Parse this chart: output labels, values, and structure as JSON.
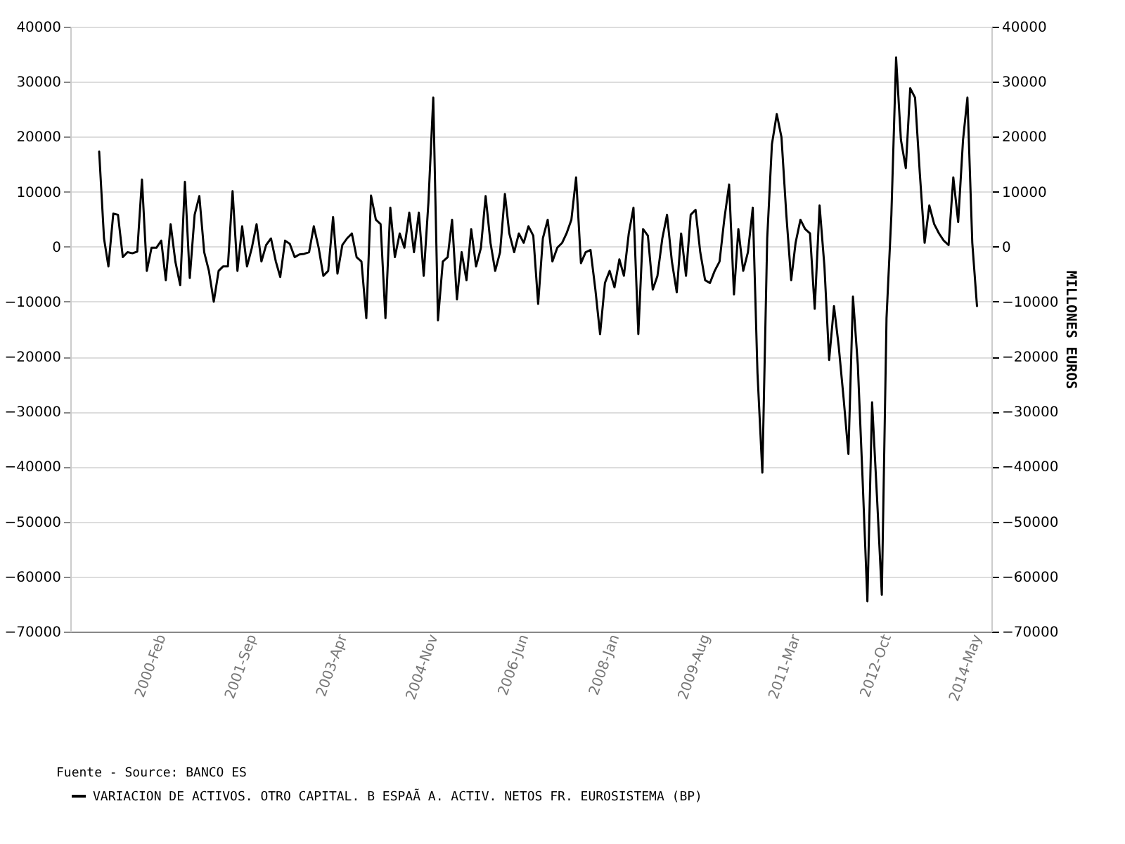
{
  "chart_data": {
    "type": "line",
    "y2label": "MILLONES EUROS",
    "annotations": [
      "Fuente - Source: BANCO ES"
    ],
    "x": [
      "1999-01",
      "1999-02",
      "1999-03",
      "1999-04",
      "1999-05",
      "1999-06",
      "1999-07",
      "1999-08",
      "1999-09",
      "1999-10",
      "1999-11",
      "1999-12",
      "2000-01",
      "2000-02",
      "2000-03",
      "2000-04",
      "2000-05",
      "2000-06",
      "2000-07",
      "2000-08",
      "2000-09",
      "2000-10",
      "2000-11",
      "2000-12",
      "2001-01",
      "2001-02",
      "2001-03",
      "2001-04",
      "2001-05",
      "2001-06",
      "2001-07",
      "2001-08",
      "2001-09",
      "2001-10",
      "2001-11",
      "2001-12",
      "2002-01",
      "2002-02",
      "2002-03",
      "2002-04",
      "2002-05",
      "2002-06",
      "2002-07",
      "2002-08",
      "2002-09",
      "2002-10",
      "2002-11",
      "2002-12",
      "2003-01",
      "2003-02",
      "2003-03",
      "2003-04",
      "2003-05",
      "2003-06",
      "2003-07",
      "2003-08",
      "2003-09",
      "2003-10",
      "2003-11",
      "2003-12",
      "2004-01",
      "2004-02",
      "2004-03",
      "2004-04",
      "2004-05",
      "2004-06",
      "2004-07",
      "2004-08",
      "2004-09",
      "2004-10",
      "2004-11",
      "2004-12",
      "2005-01",
      "2005-02",
      "2005-03",
      "2005-04",
      "2005-05",
      "2005-06",
      "2005-07",
      "2005-08",
      "2005-09",
      "2005-10",
      "2005-11",
      "2005-12",
      "2006-01",
      "2006-02",
      "2006-03",
      "2006-04",
      "2006-05",
      "2006-06",
      "2006-07",
      "2006-08",
      "2006-09",
      "2006-10",
      "2006-11",
      "2006-12",
      "2007-01",
      "2007-02",
      "2007-03",
      "2007-04",
      "2007-05",
      "2007-06",
      "2007-07",
      "2007-08",
      "2007-09",
      "2007-10",
      "2007-11",
      "2007-12",
      "2008-01",
      "2008-02",
      "2008-03",
      "2008-04",
      "2008-05",
      "2008-06",
      "2008-07",
      "2008-08",
      "2008-09",
      "2008-10",
      "2008-11",
      "2008-12",
      "2009-01",
      "2009-02",
      "2009-03",
      "2009-04",
      "2009-05",
      "2009-06",
      "2009-07",
      "2009-08",
      "2009-09",
      "2009-10",
      "2009-11",
      "2009-12",
      "2010-01",
      "2010-02",
      "2010-03",
      "2010-04",
      "2010-05",
      "2010-06",
      "2010-07",
      "2010-08",
      "2010-09",
      "2010-10",
      "2010-11",
      "2010-12",
      "2011-01",
      "2011-02",
      "2011-03",
      "2011-04",
      "2011-05",
      "2011-06",
      "2011-07",
      "2011-08",
      "2011-09",
      "2011-10",
      "2011-11",
      "2011-12",
      "2012-01",
      "2012-02",
      "2012-03",
      "2012-04",
      "2012-05",
      "2012-06",
      "2012-07",
      "2012-08",
      "2012-09",
      "2012-10",
      "2012-11",
      "2012-12",
      "2013-01",
      "2013-02",
      "2013-03",
      "2013-04",
      "2013-05",
      "2013-06",
      "2013-07",
      "2013-08",
      "2013-09",
      "2013-10",
      "2013-11",
      "2013-12",
      "2014-01",
      "2014-02",
      "2014-03",
      "2014-04",
      "2014-05"
    ],
    "series": [
      {
        "name": "VARIACION DE ACTIVOS. OTRO CAPITAL. B ESPAÃ A. ACTIV. NETOS FR. EUROSISTEMA (BP)",
        "color": "#000000",
        "values": [
          17300,
          1500,
          -3600,
          6000,
          5800,
          -1900,
          -1000,
          -1200,
          -900,
          12200,
          -4400,
          -200,
          -200,
          1100,
          -6100,
          4100,
          -2700,
          -7000,
          11800,
          -5700,
          5800,
          9200,
          -1000,
          -4400,
          -10000,
          -4400,
          -3600,
          -3600,
          10100,
          -4400,
          3700,
          -3600,
          -200,
          4100,
          -2700,
          300,
          1500,
          -2700,
          -5500,
          1100,
          500,
          -1900,
          -1400,
          -1300,
          -1000,
          3700,
          -200,
          -5300,
          -4400,
          5400,
          -4900,
          300,
          1500,
          2400,
          -1900,
          -2700,
          -13000,
          9300,
          4900,
          4100,
          -13000,
          7100,
          -1900,
          2400,
          -200,
          6200,
          -1000,
          6200,
          -5300,
          8000,
          27100,
          -13400,
          -2700,
          -1900,
          4900,
          -9600,
          -1000,
          -6100,
          3200,
          -3600,
          -200,
          9200,
          700,
          -4400,
          -1000,
          9600,
          2400,
          -1000,
          2400,
          700,
          3700,
          2000,
          -10400,
          1500,
          4900,
          -2700,
          -200,
          700,
          2400,
          4900,
          12600,
          -3000,
          -1000,
          -600,
          -7800,
          -15900,
          -6600,
          -4400,
          -7400,
          -2300,
          -5300,
          2400,
          7100,
          -15900,
          3200,
          2000,
          -7800,
          -5300,
          1500,
          5800,
          -2700,
          -8300,
          2400,
          -5300,
          5800,
          6700,
          -1000,
          -6100,
          -6600,
          -4400,
          -2700,
          4900,
          11300,
          -8700,
          3200,
          -4400,
          -1000,
          7100,
          -23000,
          -41100,
          1500,
          18600,
          24100,
          19900,
          5800,
          -6100,
          700,
          4900,
          3200,
          2400,
          -11300,
          7500,
          -3600,
          -20600,
          -10800,
          -18100,
          -27500,
          -37700,
          -9100,
          -21500,
          -42000,
          -64500,
          -28300,
          -45400,
          -63300,
          -13000,
          5800,
          34400,
          19400,
          14300,
          28800,
          27100,
          13500,
          700,
          7500,
          4100,
          2400,
          1100,
          300,
          12600,
          4500,
          19400,
          27100,
          700,
          -10800
        ]
      }
    ],
    "xlim": [
      "1998-07",
      "2014-08"
    ],
    "xticks": [
      {
        "value": "2000-02",
        "label": "2000-Feb"
      },
      {
        "value": "2001-09",
        "label": "2001-Sep"
      },
      {
        "value": "2003-04",
        "label": "2003-Apr"
      },
      {
        "value": "2004-11",
        "label": "2004-Nov"
      },
      {
        "value": "2006-06",
        "label": "2006-Jun"
      },
      {
        "value": "2008-01",
        "label": "2008-Jan"
      },
      {
        "value": "2009-08",
        "label": "2009-Aug"
      },
      {
        "value": "2011-03",
        "label": "2011-Mar"
      },
      {
        "value": "2012-10",
        "label": "2012-Oct"
      },
      {
        "value": "2014-05",
        "label": "2014-May"
      }
    ],
    "ylim": [
      -70000,
      40000
    ],
    "yticks": [
      -70000,
      -60000,
      -50000,
      -40000,
      -30000,
      -20000,
      -10000,
      0,
      10000,
      20000,
      30000,
      40000
    ],
    "y2lim": [
      -70000,
      40000
    ],
    "y2ticks": [
      -70000,
      -60000,
      -50000,
      -40000,
      -30000,
      -20000,
      -10000,
      0,
      10000,
      20000,
      30000,
      40000
    ],
    "grid": "y",
    "legend": "bottom"
  }
}
